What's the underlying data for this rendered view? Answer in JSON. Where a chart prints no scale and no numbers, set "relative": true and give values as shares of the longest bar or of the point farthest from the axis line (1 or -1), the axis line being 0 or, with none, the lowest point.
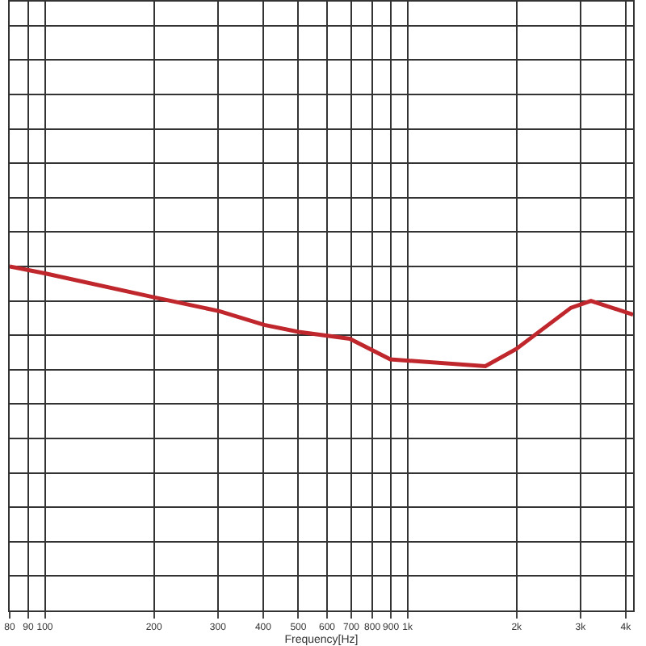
{
  "chart_data": {
    "type": "line",
    "relative": true,
    "xlabel": "Frequency[Hz]",
    "log": "x",
    "grid": true,
    "marker": "none",
    "line_style": "solid",
    "tick_labels": "x",
    "xlim": [
      80,
      4190
    ],
    "xticks": [
      80,
      90,
      100,
      200,
      300,
      400,
      500,
      600,
      700,
      800,
      900,
      {
        "value": 1000,
        "label": "1k"
      },
      {
        "value": 2000,
        "label": "2k"
      },
      {
        "value": 3000,
        "label": "3k"
      },
      {
        "value": 4000,
        "label": "4k"
      }
    ],
    "x": [
      80,
      100,
      201,
      303,
      403,
      501,
      693,
      897,
      1640,
      1995,
      2825,
      3206,
      4190
    ],
    "series": [
      {
        "color": "#c0272d",
        "values": [
          1,
          0.98,
          0.91,
          0.87,
          0.83,
          0.81,
          0.79,
          0.73,
          0.71,
          0.76,
          0.88,
          0.9,
          0.86
        ]
      }
    ]
  }
}
